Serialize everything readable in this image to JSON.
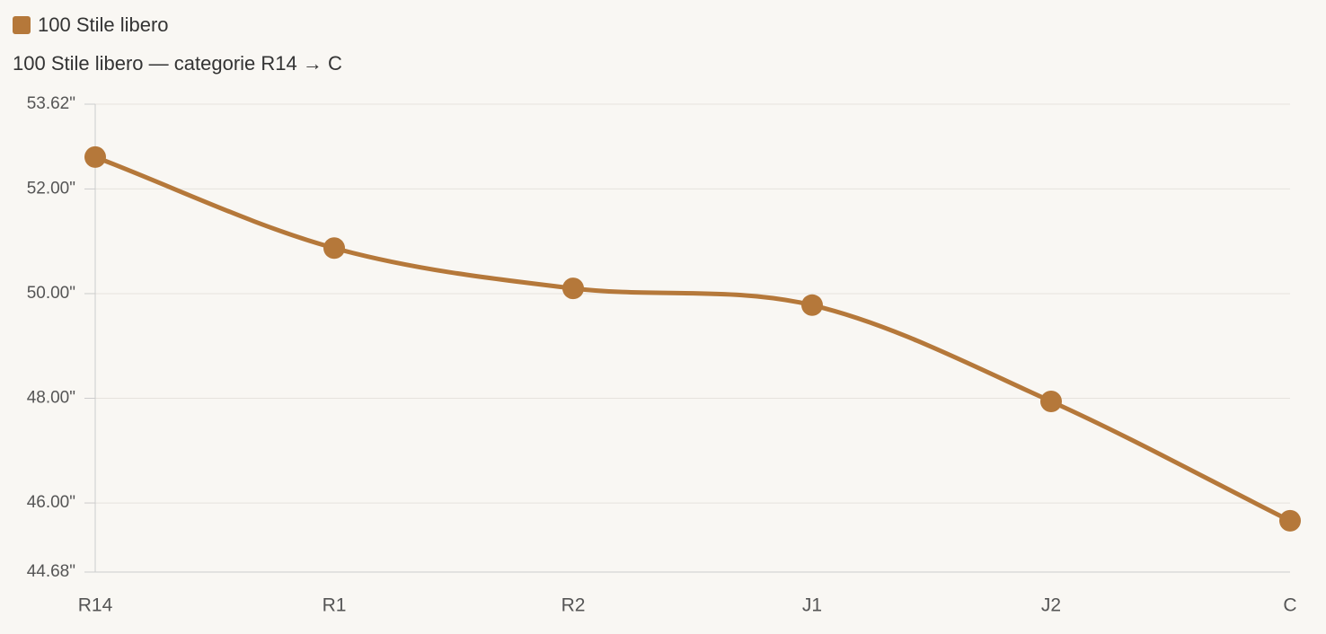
{
  "chart_data": {
    "type": "line",
    "title": "100 Stile libero — categorie R14 → C",
    "categories": [
      "R14",
      "R1",
      "R2",
      "J1",
      "J2",
      "C"
    ],
    "series": [
      {
        "name": "100 Stile libero",
        "color": "#b5783a",
        "values": [
          52.61,
          50.87,
          50.1,
          49.78,
          47.94,
          45.66
        ]
      }
    ],
    "ylim": [
      44.68,
      53.62
    ],
    "yticks": [
      {
        "value": 44.68,
        "label": "44.68\""
      },
      {
        "value": 46,
        "label": "46.00\""
      },
      {
        "value": 48,
        "label": "48.00\""
      },
      {
        "value": 50,
        "label": "50.00\""
      },
      {
        "value": 52,
        "label": "52.00\""
      },
      {
        "value": 53.62,
        "label": "53.62\""
      }
    ],
    "grid": true,
    "legend": "top-left"
  }
}
